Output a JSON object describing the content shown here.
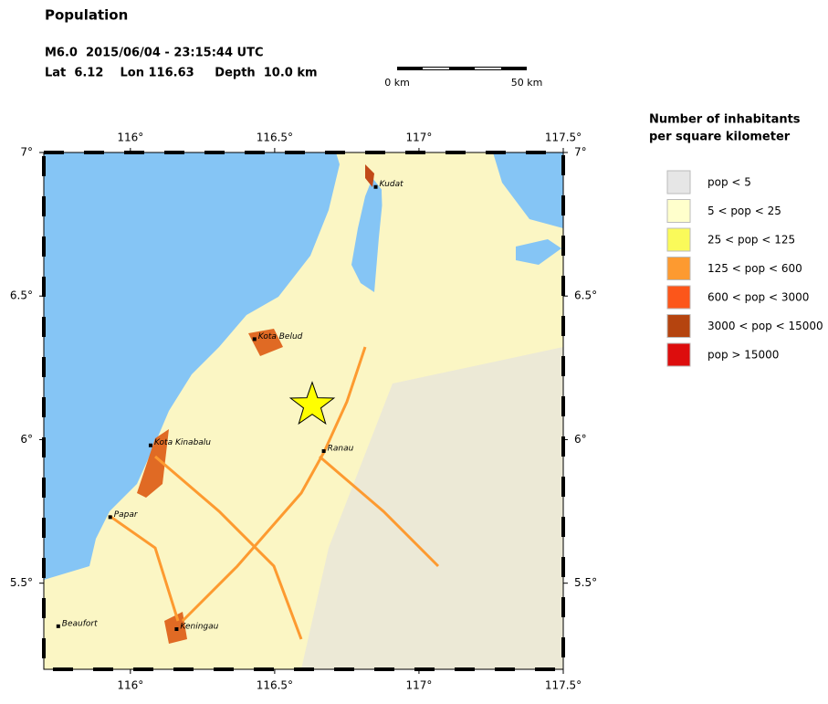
{
  "header": {
    "title": "Population",
    "event_line": "M6.0  2015/06/04 - 23:15:44 UTC",
    "location_line": "Lat  6.12    Lon 116.63     Depth  10.0 km"
  },
  "scale_bar": {
    "start_label": "0 km",
    "end_label": "50 km"
  },
  "map": {
    "lon_range": [
      115.7,
      117.5
    ],
    "lat_range": [
      5.2,
      7
    ],
    "xticks": [
      {
        "value": 116,
        "label": "116°"
      },
      {
        "value": 116.5,
        "label": "116.5°"
      },
      {
        "value": 117,
        "label": "117°"
      },
      {
        "value": 117.5,
        "label": "117.5°"
      }
    ],
    "yticks": [
      {
        "value": 7,
        "label": "7°"
      },
      {
        "value": 6.5,
        "label": "6.5°"
      },
      {
        "value": 6,
        "label": "6°"
      },
      {
        "value": 5.5,
        "label": "5.5°"
      }
    ],
    "cities": [
      {
        "name": "Kudat",
        "lon": 116.85,
        "lat": 6.88
      },
      {
        "name": "Kota Belud",
        "lon": 116.43,
        "lat": 6.35
      },
      {
        "name": "Kota Kinabalu",
        "lon": 116.07,
        "lat": 5.98
      },
      {
        "name": "Ranau",
        "lon": 116.67,
        "lat": 5.96
      },
      {
        "name": "Papar",
        "lon": 115.93,
        "lat": 5.73
      },
      {
        "name": "Beaufort",
        "lon": 115.75,
        "lat": 5.35
      },
      {
        "name": "Keningau",
        "lon": 116.16,
        "lat": 5.34
      }
    ],
    "epicenter": {
      "lon": 116.63,
      "lat": 6.12
    }
  },
  "legend": {
    "title_lines": [
      "Number of inhabitants",
      "per square kilometer"
    ],
    "items": [
      {
        "label": "pop < 5",
        "color": "#e6e6e6"
      },
      {
        "label": "5 < pop < 25",
        "color": "#ffffcc"
      },
      {
        "label": "25 < pop < 125",
        "color": "#fafa5a"
      },
      {
        "label": "125 < pop < 600",
        "color": "#fd9a30"
      },
      {
        "label": "600 < pop < 3000",
        "color": "#fc561a"
      },
      {
        "label": "3000 < pop < 15000",
        "color": "#b5440f"
      },
      {
        "label": "pop > 15000",
        "color": "#dd0d0d"
      }
    ]
  }
}
